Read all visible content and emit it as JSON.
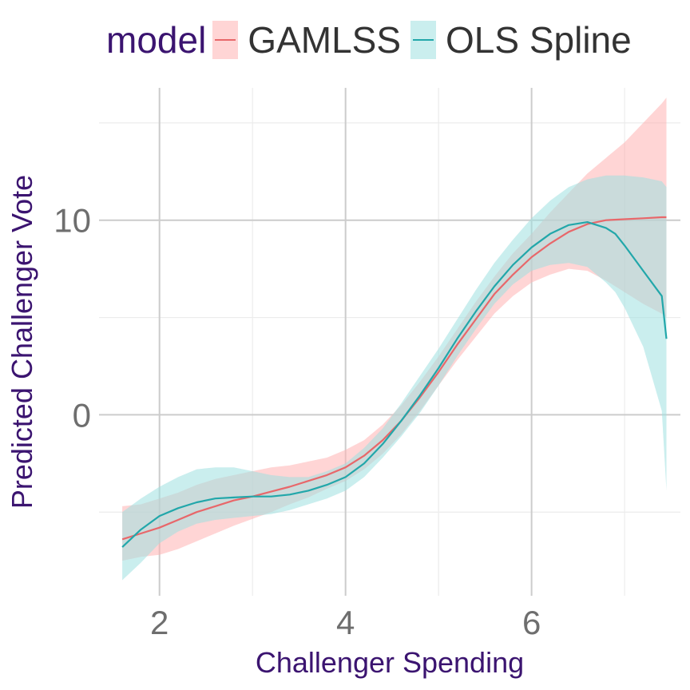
{
  "chart_data": {
    "type": "line",
    "xlabel": "Challenger Spending",
    "ylabel": "Predicted Challenger Vote",
    "xlim": [
      1.35,
      7.6
    ],
    "ylim": [
      -9.3,
      16.8
    ],
    "x_ticks": [
      2,
      4,
      6
    ],
    "y_ticks": [
      0,
      10
    ],
    "x_minor": [
      3,
      5,
      7
    ],
    "y_minor": [
      -5,
      5,
      15
    ],
    "grid": true,
    "legend": {
      "title": "model",
      "position": "top"
    },
    "series": [
      {
        "name": "GAMLSS",
        "color": "#e8676a",
        "band_color": "#ffb3b3",
        "x": [
          1.6,
          1.8,
          2.0,
          2.2,
          2.4,
          2.6,
          2.8,
          3.0,
          3.2,
          3.4,
          3.6,
          3.8,
          4.0,
          4.2,
          4.4,
          4.6,
          4.8,
          5.0,
          5.2,
          5.4,
          5.6,
          5.8,
          6.0,
          6.2,
          6.4,
          6.6,
          6.8,
          7.0,
          7.2,
          7.4,
          7.45
        ],
        "y": [
          -6.4,
          -6.1,
          -5.8,
          -5.4,
          -5.0,
          -4.7,
          -4.4,
          -4.2,
          -3.95,
          -3.7,
          -3.4,
          -3.1,
          -2.7,
          -2.1,
          -1.3,
          -0.3,
          0.9,
          2.2,
          3.6,
          4.9,
          6.2,
          7.2,
          8.1,
          8.8,
          9.4,
          9.8,
          10.0,
          10.05,
          10.1,
          10.15,
          10.15
        ],
        "lower": [
          -7.5,
          -7.3,
          -7.2,
          -6.9,
          -6.5,
          -6.1,
          -5.7,
          -5.35,
          -5.0,
          -4.6,
          -4.25,
          -3.8,
          -3.4,
          -2.8,
          -2.0,
          -1.0,
          0.2,
          1.5,
          2.8,
          4.0,
          5.2,
          6.1,
          6.8,
          7.2,
          7.5,
          7.4,
          6.9,
          6.3,
          5.7,
          5.2,
          5.0
        ],
        "upper": [
          -4.7,
          -4.6,
          -4.3,
          -4.0,
          -3.6,
          -3.3,
          -3.1,
          -2.9,
          -2.7,
          -2.6,
          -2.4,
          -2.2,
          -1.8,
          -1.3,
          -0.5,
          0.5,
          1.7,
          3.0,
          4.4,
          5.8,
          7.1,
          8.3,
          9.3,
          10.4,
          11.4,
          12.4,
          13.2,
          14.0,
          15.0,
          16.0,
          16.3
        ]
      },
      {
        "name": "OLS Spline",
        "color": "#22a7aa",
        "band_color": "#9ee0e0",
        "x": [
          1.6,
          1.8,
          2.0,
          2.2,
          2.4,
          2.6,
          2.8,
          3.0,
          3.2,
          3.4,
          3.6,
          3.8,
          4.0,
          4.2,
          4.4,
          4.6,
          4.8,
          5.0,
          5.2,
          5.4,
          5.6,
          5.8,
          6.0,
          6.2,
          6.4,
          6.6,
          6.8,
          6.9,
          7.0,
          7.2,
          7.4,
          7.45
        ],
        "y": [
          -6.8,
          -5.9,
          -5.2,
          -4.8,
          -4.5,
          -4.3,
          -4.25,
          -4.2,
          -4.2,
          -4.1,
          -3.9,
          -3.6,
          -3.2,
          -2.5,
          -1.5,
          -0.3,
          1.0,
          2.4,
          3.9,
          5.3,
          6.6,
          7.7,
          8.6,
          9.3,
          9.75,
          9.9,
          9.6,
          9.3,
          8.7,
          7.4,
          6.1,
          3.9
        ],
        "lower": [
          -8.5,
          -7.6,
          -6.6,
          -6.0,
          -5.6,
          -5.4,
          -5.3,
          -5.2,
          -5.1,
          -4.9,
          -4.6,
          -4.3,
          -3.9,
          -3.2,
          -2.2,
          -1.1,
          0.1,
          1.5,
          3.0,
          4.4,
          5.7,
          6.7,
          7.4,
          7.7,
          7.8,
          7.6,
          6.8,
          6.3,
          5.5,
          3.5,
          0.2,
          -3.9
        ],
        "upper": [
          -5.0,
          -4.3,
          -3.7,
          -3.2,
          -2.8,
          -2.7,
          -2.7,
          -2.9,
          -3.1,
          -3.2,
          -3.2,
          -2.9,
          -2.5,
          -1.7,
          -0.7,
          0.6,
          2.0,
          3.4,
          4.9,
          6.4,
          7.8,
          9.0,
          10.1,
          11.0,
          11.7,
          12.1,
          12.3,
          12.3,
          12.3,
          12.2,
          12.0,
          11.7
        ]
      }
    ]
  }
}
